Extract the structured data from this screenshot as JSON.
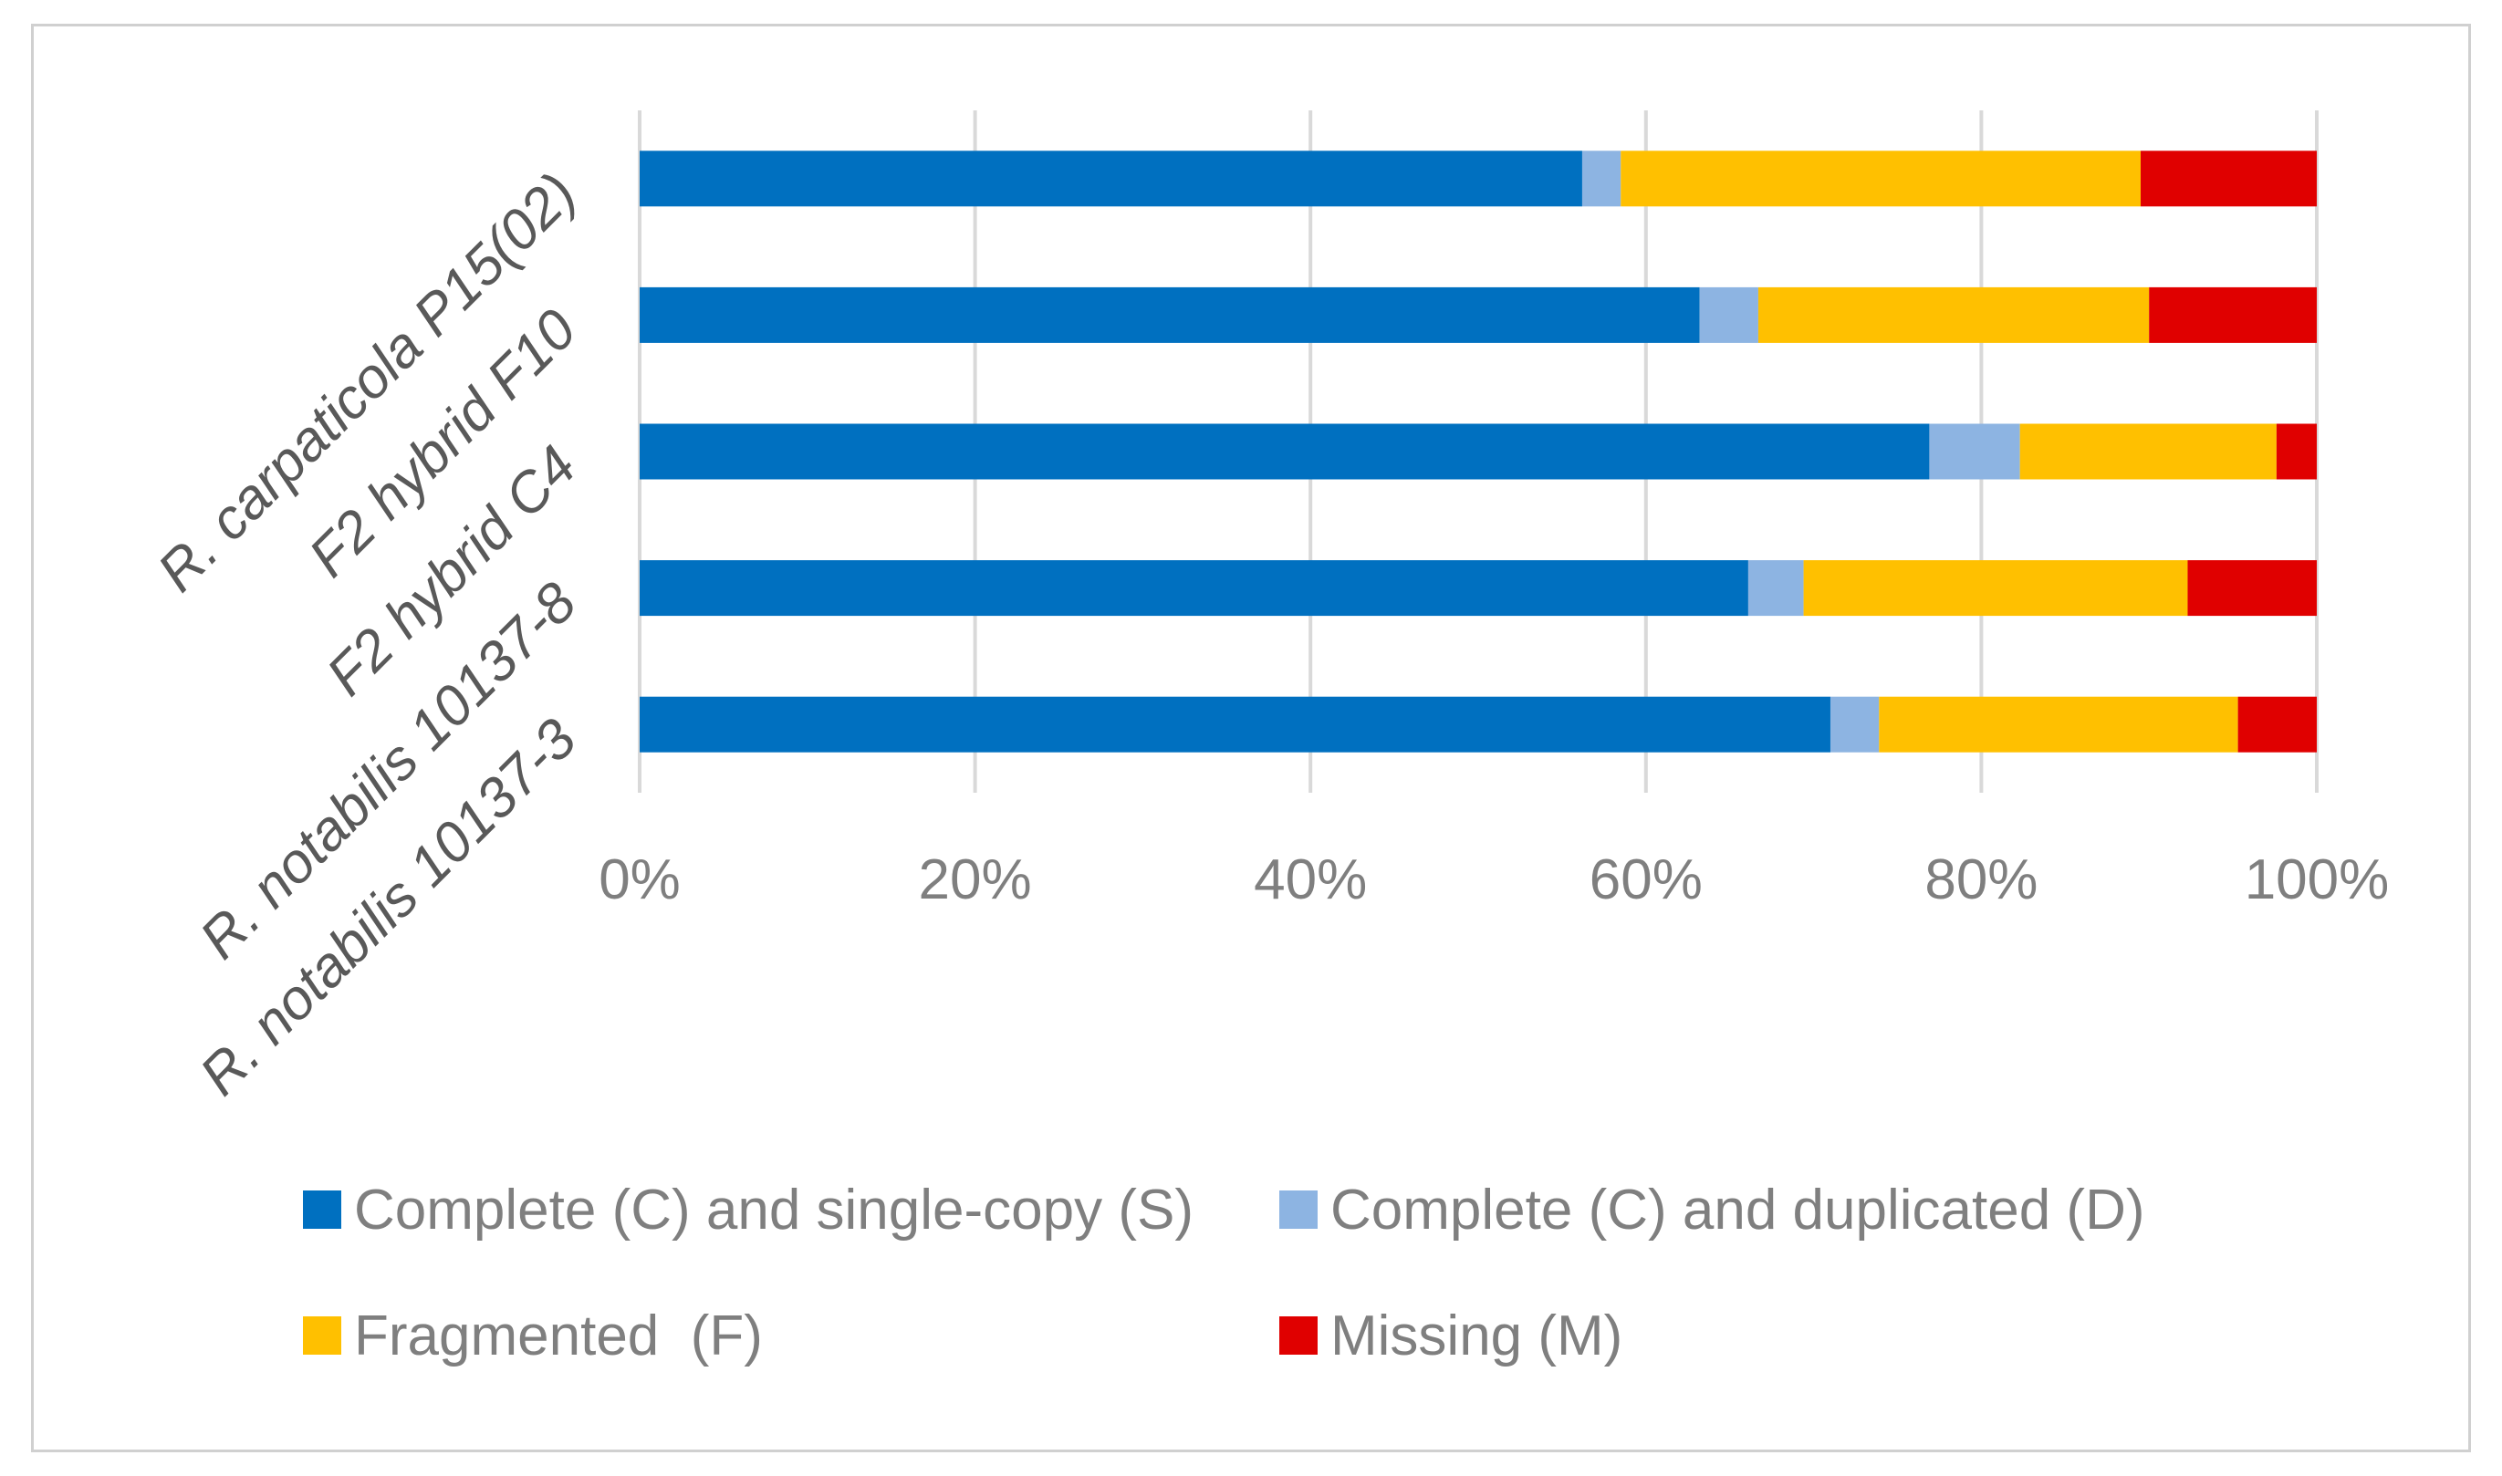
{
  "chart_data": {
    "type": "bar",
    "orientation": "horizontal",
    "stacked": "percent",
    "categories": [
      "R. carpaticola P15(02)",
      "F2 hybrid F10",
      "F2 hybrid C4",
      "R. notabilis 10137-8",
      "R. notabilis 10137-3"
    ],
    "series": [
      {
        "name": "Complete (C) and single-copy (S)",
        "color": "#0070C0",
        "values": [
          56.2,
          63.2,
          76.9,
          66.1,
          71.0
        ]
      },
      {
        "name": "Complete (C) and duplicated (D)",
        "color": "#8DB4E2",
        "values": [
          2.3,
          3.5,
          5.4,
          3.3,
          2.9
        ]
      },
      {
        "name": "Fragmented  (F)",
        "color": "#FFC000",
        "values": [
          31.0,
          23.3,
          15.3,
          22.9,
          21.4
        ]
      },
      {
        "name": "Missing (M)",
        "color": "#E00000",
        "values": [
          10.5,
          10.0,
          2.4,
          7.7,
          4.7
        ]
      }
    ],
    "xticks": [
      "0%",
      "20%",
      "40%",
      "60%",
      "80%",
      "100%"
    ],
    "xlim": [
      0,
      100
    ],
    "grid": true,
    "legend_position": "bottom",
    "title": "",
    "xlabel": "",
    "ylabel": ""
  }
}
